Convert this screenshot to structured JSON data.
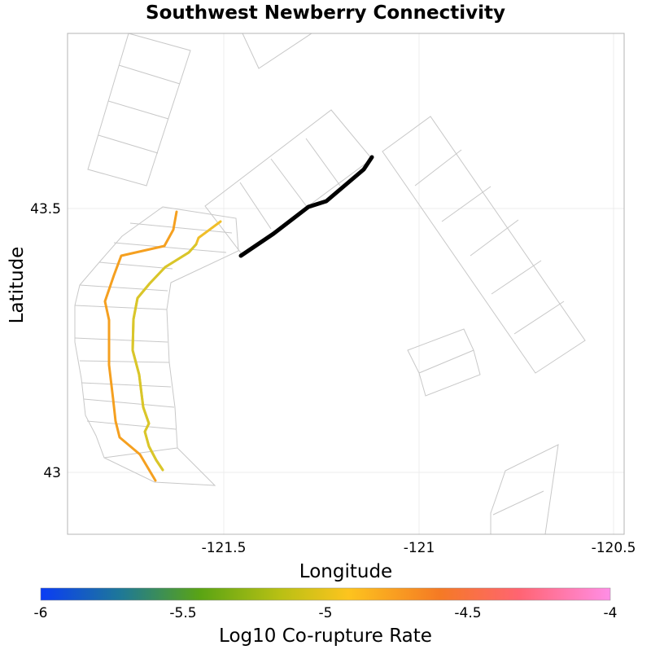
{
  "title": "Southwest Newberry Connectivity",
  "x_axis": {
    "label": "Longitude",
    "ticks": [
      "-121.5",
      "-121",
      "-120.5"
    ]
  },
  "y_axis": {
    "label": "Latitude",
    "ticks": [
      "43.5",
      "43"
    ]
  },
  "colorbar": {
    "label": "Log10 Co-rupture Rate",
    "ticks": [
      "-6",
      "-5.5",
      "-5",
      "-4.5",
      "-4"
    ],
    "gradient_stops": [
      "#0a3cf5",
      "#1e7898",
      "#5aa414",
      "#b8c014",
      "#fdc41e",
      "#f57a24",
      "#ff6472",
      "#ff8ee6"
    ]
  },
  "colors": {
    "source_fault": "#000000",
    "rupture_orange": "#f5a020",
    "rupture_gold": "#f0be2a",
    "rupture_yellow": "#d9c62a",
    "subsection_outline": "#c8c8c8",
    "grid": "#ececec",
    "frame": "#b4b4b4"
  },
  "faults": [
    {
      "name": "source-fault",
      "color": "#000000",
      "rate_log10": null
    },
    {
      "name": "orange-rupture-trace",
      "color": "#f5a020",
      "rate_log10": -4.8
    },
    {
      "name": "gold-rupture-trace",
      "color": "#f0be2a",
      "rate_log10": -5.0
    },
    {
      "name": "yellow-rupture-trace",
      "color": "#d9c62a",
      "rate_log10": -5.2
    }
  ]
}
